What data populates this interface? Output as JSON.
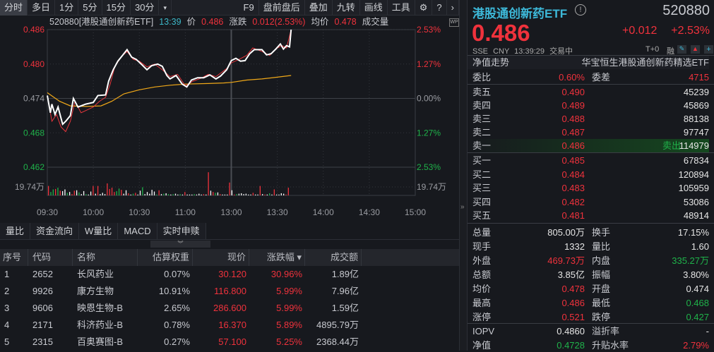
{
  "toolbar": {
    "tabs": [
      "分时",
      "多日",
      "1分",
      "5分",
      "15分",
      "30分",
      "▾"
    ],
    "right": [
      "F9",
      "盘前盘后",
      "叠加",
      "九转",
      "画线",
      "工具"
    ],
    "icons": [
      "gear-icon",
      "help-icon",
      "chevron-right-icon"
    ]
  },
  "chart_header": {
    "code_name": "520880[港股通创新药ETF]",
    "time": "13:39",
    "price_label": "价",
    "price": "0.486",
    "change_label": "涨跌",
    "change": "0.012(2.53%)",
    "avg_label": "均价",
    "avg": "0.478",
    "volume_label": "成交量"
  },
  "chart_data": {
    "type": "line",
    "y_left_ticks": [
      "0.486",
      "0.480",
      "0.474",
      "0.468",
      "0.462"
    ],
    "y_right_ticks": [
      "2.53%",
      "1.27%",
      "0.00%",
      "1.27%",
      "2.53%"
    ],
    "ylim": [
      0.462,
      0.486
    ],
    "prev_close": 0.474,
    "x_ticks": [
      "09:30",
      "10:00",
      "10:30",
      "11:00",
      "13:00",
      "13:30",
      "14:00",
      "14:30",
      "15:00"
    ],
    "volume_tick": "19.74万",
    "volume_tick_value": 19.74,
    "colors": {
      "price": "#ffffff",
      "avg": "#f0a818",
      "nav": "#e8363c",
      "up": "#f0323c",
      "down": "#1fb24a",
      "flat": "#ffffff"
    },
    "price": [
      [
        "09:30",
        0.4745
      ],
      [
        "09:32",
        0.4715
      ],
      [
        "09:33",
        0.473
      ],
      [
        "09:35",
        0.4712
      ],
      [
        "09:37",
        0.4725
      ],
      [
        "09:40",
        0.4695
      ],
      [
        "09:42",
        0.47
      ],
      [
        "09:45",
        0.471
      ],
      [
        "09:47",
        0.474
      ],
      [
        "09:50",
        0.4725
      ],
      [
        "09:55",
        0.473
      ],
      [
        "10:00",
        0.4733
      ],
      [
        "10:03",
        0.4745
      ],
      [
        "10:08",
        0.4746
      ],
      [
        "10:10",
        0.477
      ],
      [
        "10:13",
        0.479
      ],
      [
        "10:16",
        0.4805
      ],
      [
        "10:19",
        0.4815
      ],
      [
        "10:22",
        0.4825
      ],
      [
        "10:25",
        0.4812
      ],
      [
        "10:28",
        0.4808
      ],
      [
        "10:32",
        0.4798
      ],
      [
        "10:35",
        0.479
      ],
      [
        "10:38",
        0.4797
      ],
      [
        "10:42",
        0.48
      ],
      [
        "10:45",
        0.4796
      ],
      [
        "10:48",
        0.478
      ],
      [
        "10:50",
        0.4774
      ],
      [
        "10:54",
        0.478
      ],
      [
        "10:58",
        0.4765
      ],
      [
        "11:01",
        0.476
      ],
      [
        "11:04",
        0.4772
      ],
      [
        "11:08",
        0.4776
      ],
      [
        "11:12",
        0.4776
      ],
      [
        "11:16",
        0.4781
      ],
      [
        "11:20",
        0.4774
      ],
      [
        "11:23",
        0.4779
      ],
      [
        "11:27",
        0.479
      ],
      [
        "13:00",
        0.4806
      ],
      [
        "13:03",
        0.481
      ],
      [
        "13:06",
        0.4805
      ],
      [
        "13:09",
        0.4806
      ],
      [
        "13:12",
        0.4818
      ],
      [
        "13:15",
        0.4825
      ],
      [
        "13:20",
        0.4825
      ],
      [
        "13:23",
        0.4816
      ],
      [
        "13:26",
        0.4818
      ],
      [
        "13:29",
        0.4826
      ],
      [
        "13:32",
        0.4835
      ],
      [
        "13:34",
        0.4826
      ],
      [
        "13:36",
        0.4832
      ],
      [
        "13:38",
        0.483
      ],
      [
        "13:39",
        0.486
      ]
    ],
    "nav": [
      [
        "09:30",
        0.4745
      ],
      [
        "09:33",
        0.47
      ],
      [
        "09:36",
        0.4712
      ],
      [
        "09:39",
        0.469
      ],
      [
        "09:42",
        0.4682
      ],
      [
        "09:45",
        0.47
      ],
      [
        "09:48",
        0.4735
      ],
      [
        "09:52",
        0.4715
      ],
      [
        "09:56",
        0.472
      ],
      [
        "10:00",
        0.4725
      ],
      [
        "10:04",
        0.4735
      ],
      [
        "10:08",
        0.4742
      ],
      [
        "10:11",
        0.4765
      ],
      [
        "10:14",
        0.4795
      ],
      [
        "10:18",
        0.4812
      ],
      [
        "10:22",
        0.4822
      ],
      [
        "10:26",
        0.4808
      ],
      [
        "10:30",
        0.4805
      ],
      [
        "10:35",
        0.4795
      ],
      [
        "10:40",
        0.48
      ],
      [
        "10:45",
        0.479
      ],
      [
        "10:50",
        0.4778
      ],
      [
        "10:55",
        0.4782
      ],
      [
        "11:00",
        0.4762
      ],
      [
        "11:05",
        0.477
      ],
      [
        "11:10",
        0.4775
      ],
      [
        "11:15",
        0.4782
      ],
      [
        "11:20",
        0.4778
      ],
      [
        "11:27",
        0.4792
      ],
      [
        "13:00",
        0.4802
      ],
      [
        "13:05",
        0.4808
      ],
      [
        "13:10",
        0.4815
      ],
      [
        "13:14",
        0.4828
      ],
      [
        "13:20",
        0.4822
      ],
      [
        "13:25",
        0.4815
      ],
      [
        "13:30",
        0.4828
      ],
      [
        "13:33",
        0.4832
      ],
      [
        "13:36",
        0.4828
      ],
      [
        "13:39",
        0.486
      ]
    ],
    "avg": [
      [
        "09:30",
        0.475
      ],
      [
        "09:38",
        0.4735
      ],
      [
        "09:45",
        0.4727
      ],
      [
        "09:55",
        0.4726
      ],
      [
        "10:05",
        0.4727
      ],
      [
        "10:12",
        0.4735
      ],
      [
        "10:20",
        0.4748
      ],
      [
        "10:30",
        0.4755
      ],
      [
        "10:40",
        0.476
      ],
      [
        "10:50",
        0.4763
      ],
      [
        "11:00",
        0.4765
      ],
      [
        "11:15",
        0.4766
      ],
      [
        "11:25",
        0.4767
      ],
      [
        "13:00",
        0.4768
      ],
      [
        "13:10",
        0.4772
      ],
      [
        "13:20",
        0.4774
      ],
      [
        "13:30",
        0.4777
      ],
      [
        "13:39",
        0.478
      ]
    ],
    "volume": [
      [
        22,
        "up"
      ],
      [
        8,
        "down"
      ],
      [
        14,
        "down"
      ],
      [
        15,
        "up"
      ],
      [
        18,
        "down"
      ],
      [
        11,
        "up"
      ],
      [
        10,
        "flat"
      ],
      [
        14,
        "flat"
      ],
      [
        6,
        "down"
      ],
      [
        8,
        "flat"
      ],
      [
        3,
        "up"
      ],
      [
        11,
        "up"
      ],
      [
        12,
        "flat"
      ],
      [
        7,
        "down"
      ],
      [
        3,
        "flat"
      ],
      [
        10,
        "flat"
      ],
      [
        3,
        "down"
      ],
      [
        2,
        "flat"
      ],
      [
        9,
        "flat"
      ],
      [
        22,
        "up"
      ],
      [
        4,
        "flat"
      ],
      [
        22,
        "up"
      ],
      [
        3,
        "flat"
      ],
      [
        6,
        "flat"
      ],
      [
        3,
        "flat"
      ],
      [
        28,
        "up"
      ],
      [
        15,
        "up"
      ],
      [
        18,
        "up"
      ],
      [
        8,
        "up"
      ],
      [
        10,
        "down"
      ],
      [
        16,
        "down"
      ],
      [
        13,
        "up"
      ],
      [
        4,
        "flat"
      ],
      [
        12,
        "flat"
      ],
      [
        5,
        "up"
      ],
      [
        2,
        "flat"
      ],
      [
        4,
        "down"
      ],
      [
        6,
        "up"
      ],
      [
        2,
        "flat"
      ],
      [
        11,
        "flat"
      ],
      [
        19,
        "down"
      ],
      [
        3,
        "flat"
      ],
      [
        8,
        "flat"
      ],
      [
        4,
        "flat"
      ],
      [
        13,
        "flat"
      ],
      [
        9,
        "flat"
      ],
      [
        2,
        "down"
      ],
      [
        12,
        "up"
      ],
      [
        3,
        "flat"
      ],
      [
        4,
        "down"
      ],
      [
        5,
        "flat"
      ],
      [
        3,
        "down"
      ],
      [
        2,
        "flat"
      ],
      [
        3,
        "down"
      ],
      [
        4,
        "flat"
      ],
      [
        2,
        "flat"
      ],
      [
        3,
        "down"
      ],
      [
        2,
        "flat"
      ],
      [
        8,
        "up"
      ],
      [
        2,
        "flat"
      ],
      [
        2,
        "flat"
      ],
      [
        2,
        "flat"
      ],
      [
        3,
        "down"
      ],
      [
        2,
        "flat"
      ],
      [
        4,
        "flat"
      ],
      [
        2,
        "flat"
      ],
      [
        3,
        "up"
      ],
      [
        2,
        "flat"
      ],
      [
        54,
        "up"
      ],
      [
        11,
        "flat"
      ],
      [
        8,
        "up"
      ],
      [
        6,
        "down"
      ],
      [
        7,
        "flat"
      ],
      [
        3,
        "up"
      ],
      [
        2,
        "flat"
      ],
      [
        2,
        "flat"
      ],
      [
        2,
        "flat"
      ],
      [
        30,
        "up"
      ],
      [
        12,
        "flat"
      ],
      [
        2,
        "up"
      ],
      [
        3,
        "down"
      ],
      [
        4,
        "flat"
      ],
      [
        5,
        "flat"
      ],
      [
        3,
        "flat"
      ],
      [
        4,
        "flat"
      ],
      [
        2,
        "flat"
      ],
      [
        2,
        "flat"
      ],
      [
        6,
        "up"
      ],
      [
        2,
        "flat"
      ],
      [
        2,
        "flat"
      ],
      [
        22,
        "up"
      ],
      [
        3,
        "flat"
      ],
      [
        2,
        "up"
      ],
      [
        2,
        "flat"
      ],
      [
        5,
        "down"
      ],
      [
        2,
        "flat"
      ],
      [
        14,
        "up"
      ],
      [
        2,
        "flat"
      ],
      [
        2,
        "flat"
      ],
      [
        5,
        "flat"
      ],
      [
        4,
        "flat"
      ],
      [
        2,
        "up"
      ],
      [
        18,
        "up"
      ]
    ]
  },
  "bottom_tabs": [
    "量比",
    "资金流向",
    "W量比",
    "MACD",
    "实时申赎"
  ],
  "table": {
    "headers": [
      "序号",
      "代码",
      "名称",
      "估算权重",
      "现价",
      "涨跌幅 ▾",
      "成交额"
    ],
    "rows": [
      [
        "1",
        "2652",
        "长风药业",
        "0.07%",
        "30.120",
        "30.96%",
        "1.89亿"
      ],
      [
        "2",
        "9926",
        "康方生物",
        "10.91%",
        "116.800",
        "5.99%",
        "7.96亿"
      ],
      [
        "3",
        "9606",
        "映恩生物-B",
        "2.65%",
        "286.600",
        "5.99%",
        "1.59亿"
      ],
      [
        "4",
        "2171",
        "科济药业-B",
        "0.78%",
        "16.370",
        "5.89%",
        "4895.79万"
      ],
      [
        "5",
        "2315",
        "百奥赛图-B",
        "0.27%",
        "57.100",
        "5.25%",
        "2368.44万"
      ]
    ]
  },
  "quote": {
    "name": "港股通创新药ETF",
    "code": "520880",
    "price": "0.486",
    "change": "+0.012",
    "change_pct": "+2.53%",
    "exchange": "SSE",
    "currency": "CNY",
    "time": "13:39:29",
    "status": "交易中",
    "t0": "T+0",
    "margin": "融",
    "nav_trend": "净值走势",
    "fund_full_name": "华宝恒生港股通创新药精选ETF",
    "wei_bi_label": "委比",
    "wei_bi": "0.60%",
    "wei_cha_label": "委差",
    "wei_cha": "4715"
  },
  "order_book": {
    "asks": [
      [
        "卖五",
        "0.490",
        "45239"
      ],
      [
        "卖四",
        "0.489",
        "45869"
      ],
      [
        "卖三",
        "0.488",
        "88138"
      ],
      [
        "卖二",
        "0.487",
        "97747"
      ],
      [
        "卖一",
        "0.486",
        "114979"
      ]
    ],
    "ask_tag": "卖出",
    "bids": [
      [
        "买一",
        "0.485",
        "67834"
      ],
      [
        "买二",
        "0.484",
        "120894"
      ],
      [
        "买三",
        "0.483",
        "105959"
      ],
      [
        "买四",
        "0.482",
        "53086"
      ],
      [
        "买五",
        "0.481",
        "48914"
      ]
    ]
  },
  "stats": [
    [
      "总量",
      "805.00万",
      "white",
      "换手",
      "17.15%",
      "white"
    ],
    [
      "现手",
      "1332",
      "white",
      "量比",
      "1.60",
      "white"
    ],
    [
      "外盘",
      "469.73万",
      "red",
      "内盘",
      "335.27万",
      "green"
    ],
    [
      "总额",
      "3.85亿",
      "white",
      "振幅",
      "3.80%",
      "white"
    ],
    [
      "均价",
      "0.478",
      "red",
      "开盘",
      "0.474",
      "white"
    ],
    [
      "最高",
      "0.486",
      "red",
      "最低",
      "0.468",
      "green"
    ],
    [
      "涨停",
      "0.521",
      "red",
      "跌停",
      "0.427",
      "green"
    ]
  ],
  "etf": [
    [
      "IOPV",
      "0.4860",
      "white",
      "溢折率",
      "-",
      "white"
    ],
    [
      "净值",
      "0.4728",
      "green",
      "升贴水率",
      "2.79%",
      "red"
    ]
  ]
}
